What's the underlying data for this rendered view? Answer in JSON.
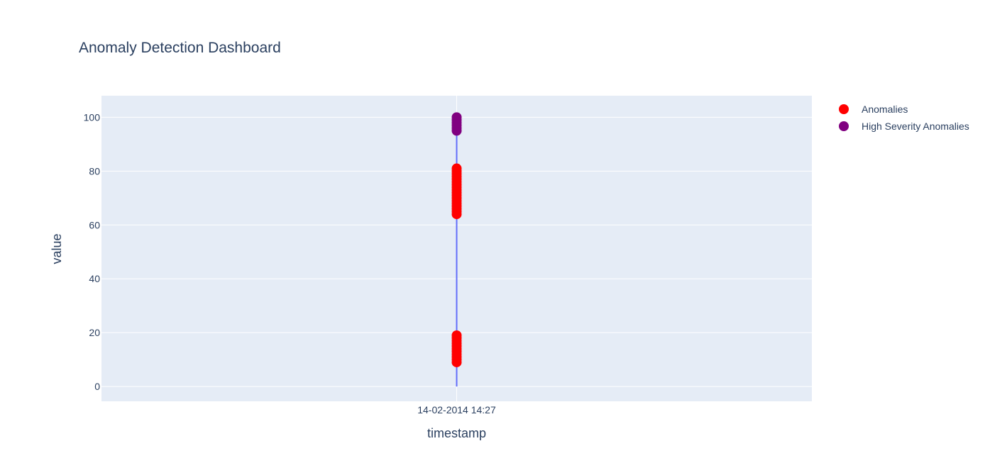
{
  "chart_data": {
    "type": "scatter",
    "title": "Anomaly Detection Dashboard",
    "xlabel": "timestamp",
    "ylabel": "value",
    "x_categories": [
      "14-02-2014 14:27"
    ],
    "ylim": [
      -5.5,
      108
    ],
    "yticks": [
      0,
      20,
      40,
      60,
      80,
      100
    ],
    "grid": true,
    "legend_position": "top-right",
    "colors": {
      "plot_bg": "#e5ecf6",
      "grid": "#ffffff",
      "line": "#636efa",
      "anomalies": "#ff0000",
      "high_severity": "#800080"
    },
    "series": [
      {
        "mode": "line",
        "x": "14-02-2014 14:27",
        "values": [
          0,
          9,
          10,
          12,
          14,
          16,
          18,
          64,
          66,
          68,
          70,
          72,
          74,
          76,
          78,
          80,
          95,
          96,
          97,
          98,
          99,
          100
        ]
      },
      {
        "name": "Anomalies",
        "mode": "markers",
        "x": "14-02-2014 14:27",
        "values": [
          9,
          10,
          11,
          12,
          13,
          14,
          15,
          16,
          17,
          18,
          19,
          64,
          65,
          66,
          67,
          68,
          69,
          70,
          71,
          72,
          73,
          74,
          75,
          76,
          77,
          78,
          79,
          80,
          81
        ]
      },
      {
        "name": "High Severity Anomalies",
        "mode": "markers",
        "x": "14-02-2014 14:27",
        "values": [
          95,
          96,
          97,
          98,
          99,
          100
        ]
      }
    ]
  }
}
